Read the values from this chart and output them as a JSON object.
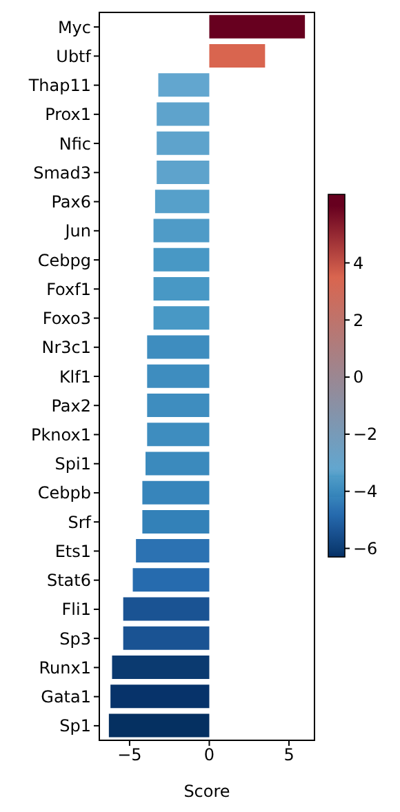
{
  "chart_data": {
    "type": "bar",
    "orientation": "horizontal",
    "xlabel": "Score",
    "categories": [
      "Myc",
      "Ubtf",
      "Thap11",
      "Prox1",
      "Nfic",
      "Smad3",
      "Pax6",
      "Jun",
      "Cebpg",
      "Foxf1",
      "Foxo3",
      "Nr3c1",
      "Klf1",
      "Pax2",
      "Pknox1",
      "Spi1",
      "Cebpb",
      "Srf",
      "Ets1",
      "Stat6",
      "Fli1",
      "Sp3",
      "Runx1",
      "Gata1",
      "Sp1"
    ],
    "values": [
      6.0,
      3.5,
      -3.2,
      -3.3,
      -3.3,
      -3.3,
      -3.4,
      -3.5,
      -3.5,
      -3.5,
      -3.5,
      -3.9,
      -3.9,
      -3.9,
      -3.9,
      -4.0,
      -4.2,
      -4.2,
      -4.6,
      -4.8,
      -5.4,
      -5.4,
      -6.1,
      -6.2,
      -6.3
    ],
    "colors": [
      "#67001f",
      "#d9654f",
      "#62a6cf",
      "#5ea3cc",
      "#5ea3cc",
      "#5ea3cc",
      "#56a0ca",
      "#4f9bc7",
      "#4898c5",
      "#4898c5",
      "#4898c5",
      "#3e8dbf",
      "#3e8dbf",
      "#3e8dbf",
      "#3e8dbf",
      "#3b8abd",
      "#3785bb",
      "#3381b8",
      "#2c72b2",
      "#266bae",
      "#1a5393",
      "#1a5393",
      "#0b3a70",
      "#07336a",
      "#053061"
    ],
    "xlim": [
      -6.9,
      6.6
    ],
    "xticks": [
      {
        "value": -5,
        "label": "−5"
      },
      0,
      5
    ],
    "clim": [
      -6.3,
      6.4
    ],
    "cticks": [
      {
        "value": -6,
        "label": "−6"
      },
      {
        "value": -4,
        "label": "−4"
      },
      {
        "value": -2,
        "label": "−2"
      },
      0,
      2,
      4
    ],
    "grid": false
  }
}
